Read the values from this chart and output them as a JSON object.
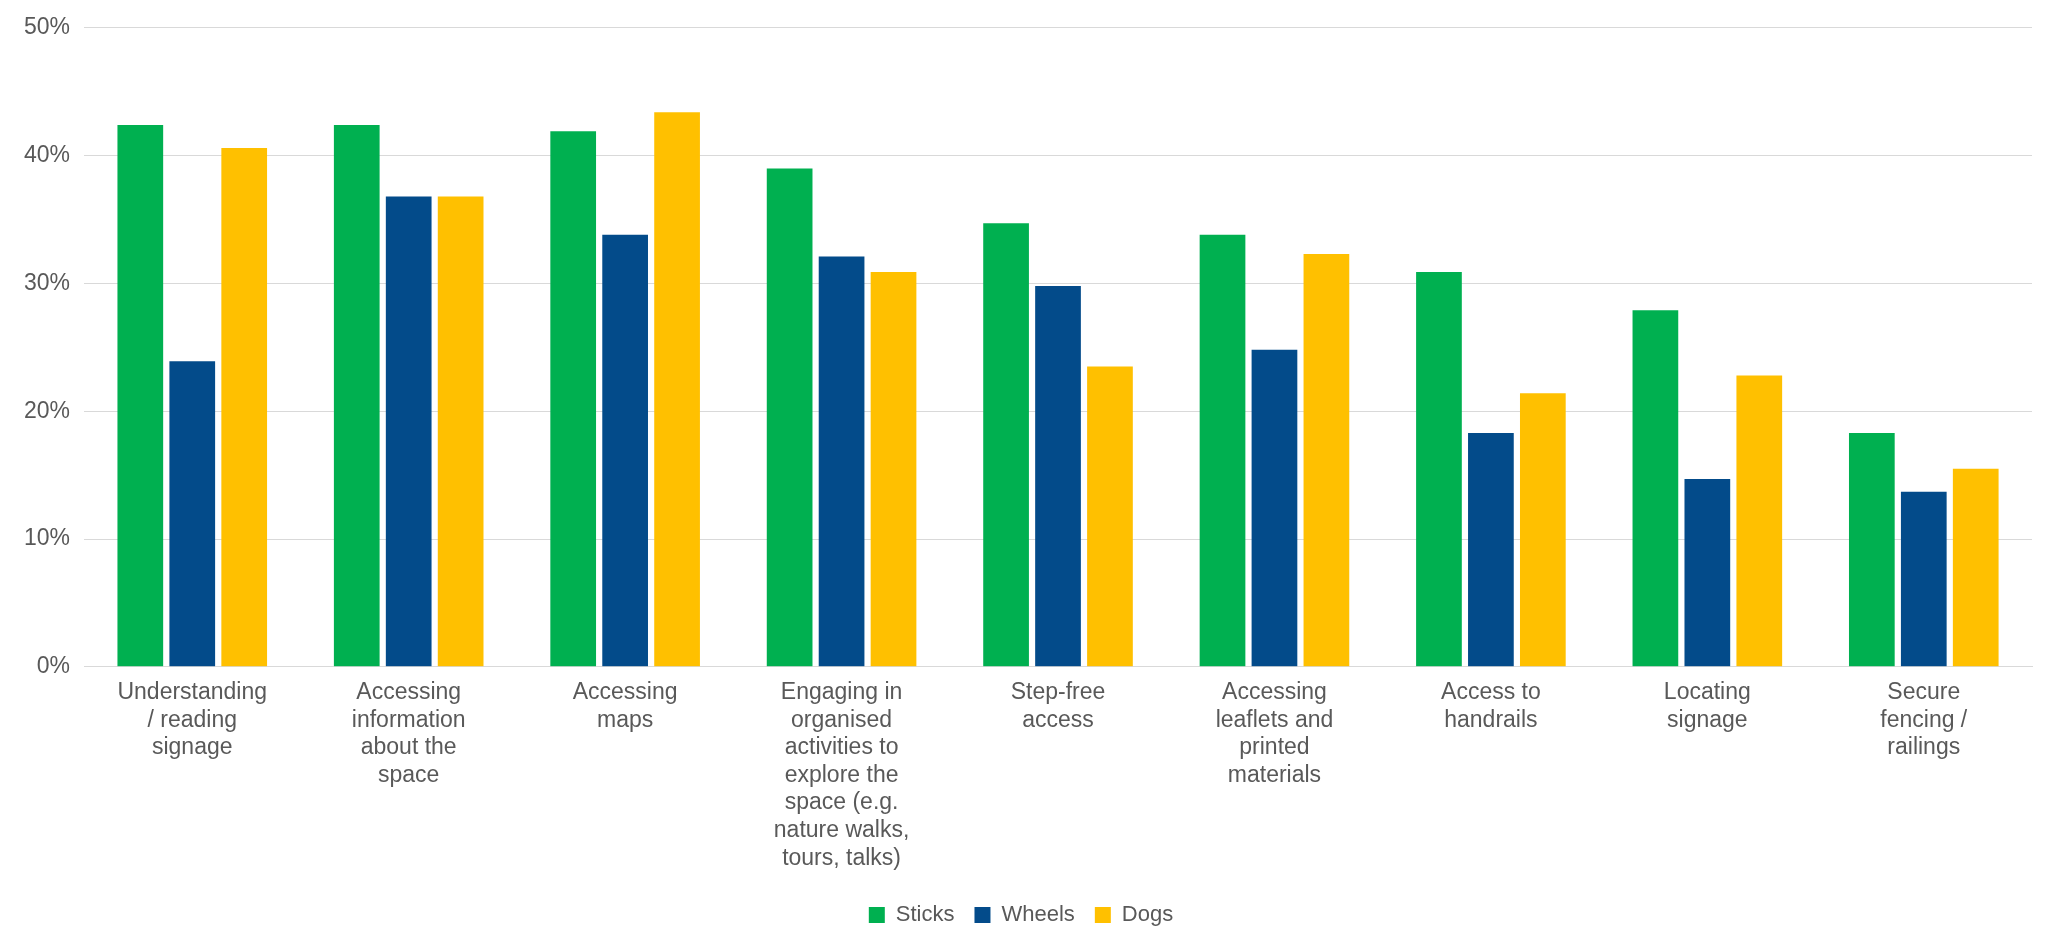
{
  "chart_data": {
    "type": "bar",
    "categories": [
      "Understanding / reading signage",
      "Accessing information about the space",
      "Accessing maps",
      "Engaging in organised activities to explore the space (e.g. nature walks, tours, talks)",
      "Step-free access",
      "Accessing leaflets and printed materials",
      "Access to handrails",
      "Locating signage",
      "Secure fencing / railings"
    ],
    "series": [
      {
        "name": "Sticks",
        "color": "#00b050",
        "values": [
          42.4,
          42.4,
          41.9,
          39.0,
          34.7,
          33.8,
          30.9,
          27.9,
          18.3
        ]
      },
      {
        "name": "Wheels",
        "color": "#034b8a",
        "values": [
          23.9,
          36.8,
          33.8,
          32.1,
          29.8,
          24.8,
          18.3,
          14.7,
          13.7
        ]
      },
      {
        "name": "Dogs",
        "color": "#ffc000",
        "values": [
          40.6,
          36.8,
          43.4,
          30.9,
          23.5,
          32.3,
          21.4,
          22.8,
          15.5
        ]
      }
    ],
    "ylim": [
      0,
      50
    ],
    "yticks": [
      {
        "value": 0,
        "label": "0%"
      },
      {
        "value": 10,
        "label": "10%"
      },
      {
        "value": 20,
        "label": "20%"
      },
      {
        "value": 30,
        "label": "30%"
      },
      {
        "value": 40,
        "label": "40%"
      },
      {
        "value": 50,
        "label": "50%"
      }
    ],
    "grid": "y",
    "legend": "bottom"
  }
}
